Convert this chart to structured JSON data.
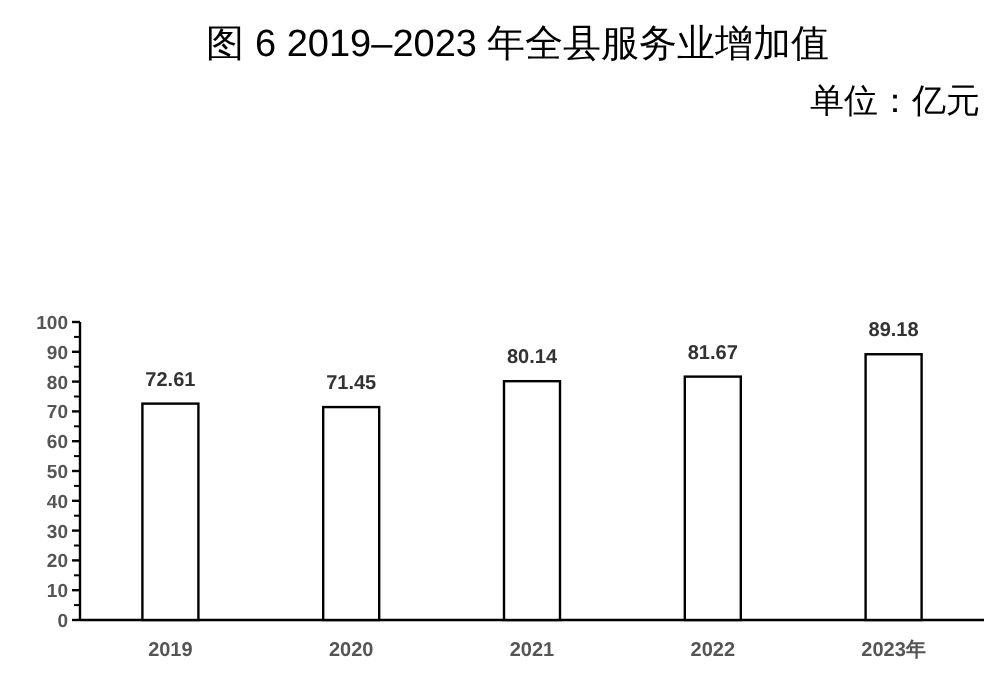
{
  "chart_data": {
    "type": "bar",
    "title": "图 6  2019–2023 年全县服务业增加值",
    "annotations": [
      "单位：亿元"
    ],
    "categories": [
      "2019",
      "2020",
      "2021",
      "2022",
      "2023年"
    ],
    "values": [
      72.61,
      71.45,
      80.14,
      81.67,
      89.18
    ],
    "color": "#ffffff",
    "ylim": [
      0,
      100
    ],
    "yticks": [
      0,
      10,
      20,
      30,
      40,
      50,
      60,
      70,
      80,
      90,
      100
    ],
    "data_labels": true
  }
}
